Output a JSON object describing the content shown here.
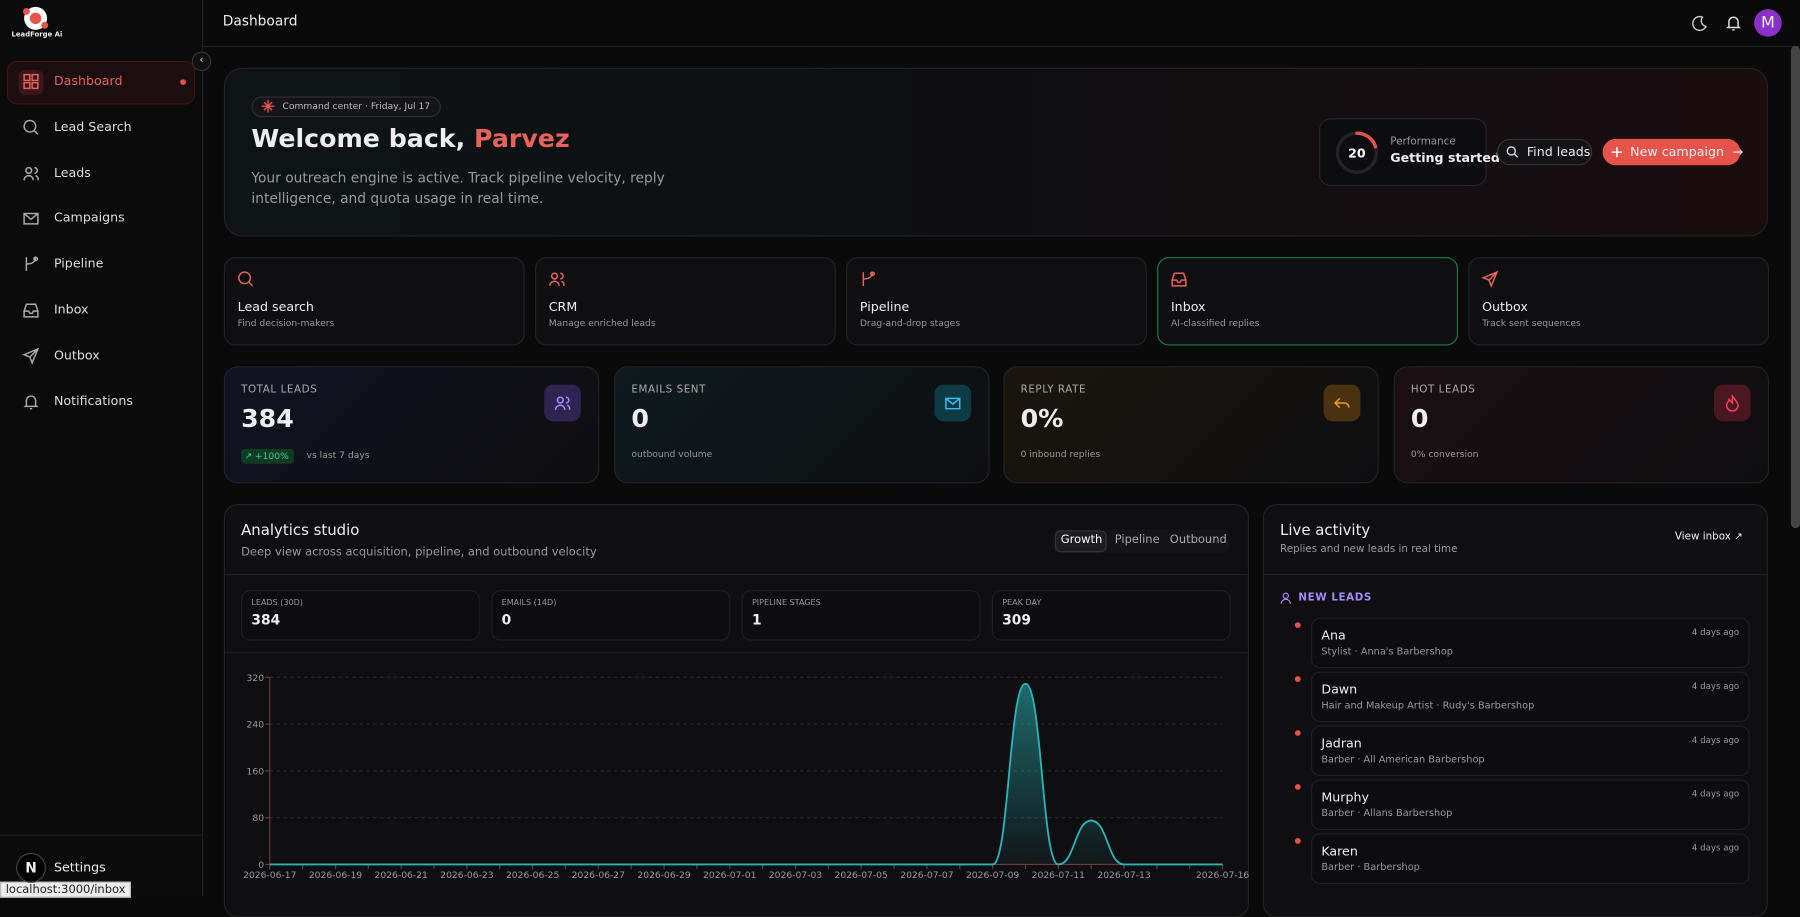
{
  "sidebar": {
    "logo": "LeadForge Ai",
    "nav": [
      "Dashboard",
      "Lead Search",
      "Leads",
      "Campaigns",
      "Pipeline",
      "Inbox",
      "Outbox",
      "Notifications"
    ],
    "footer_avatar": "N",
    "footer_label": "Settings"
  },
  "header": {
    "title": "Dashboard",
    "avatar": "M"
  },
  "hero": {
    "badge": "Command center · Friday, Jul 17",
    "greeting": "Welcome back,",
    "name": "Parvez",
    "text": "Your outreach engine is active. Track pipeline velocity, reply intelligence, and quota usage in real time.",
    "performance": {
      "score": 20,
      "label": "Performance",
      "status": "Getting started"
    },
    "buttons": [
      "Find leads",
      "New campaign"
    ]
  },
  "quick_links": [
    {
      "title": "Lead search",
      "subtitle": "Find decision-makers"
    },
    {
      "title": "CRM",
      "subtitle": "Manage enriched leads"
    },
    {
      "title": "Pipeline",
      "subtitle": "Drag-and-drop stages"
    },
    {
      "title": "Inbox",
      "subtitle": "AI-classified replies"
    },
    {
      "title": "Outbox",
      "subtitle": "Track sent sequences"
    }
  ],
  "stats": [
    {
      "label": "TOTAL LEADS",
      "value": "384",
      "badge": "+100%",
      "note": "vs last 7 days"
    },
    {
      "label": "EMAILS SENT",
      "value": "0",
      "note": "outbound volume"
    },
    {
      "label": "REPLY RATE",
      "value": "0%",
      "note": "0 inbound replies"
    },
    {
      "label": "HOT LEADS",
      "value": "0",
      "note": "0% conversion"
    }
  ],
  "analytics": {
    "title": "Analytics studio",
    "subtitle": "Deep view across acquisition, pipeline, and outbound velocity",
    "tabs": [
      "Growth",
      "Pipeline",
      "Outbound"
    ],
    "mini_stats": [
      {
        "label": "LEADS (30D)",
        "value": "384"
      },
      {
        "label": "EMAILS (14D)",
        "value": "0"
      },
      {
        "label": "PIPELINE STAGES",
        "value": "1"
      },
      {
        "label": "PEAK DAY",
        "value": "309"
      }
    ],
    "chart": {
      "type": "line",
      "categories": [
        "2026-06-17",
        null,
        "2026-06-19",
        null,
        "2026-06-21",
        null,
        "2026-06-23",
        null,
        "2026-06-25",
        null,
        "2026-06-27",
        null,
        "2026-06-29",
        null,
        "2026-07-01",
        null,
        "2026-07-03",
        null,
        "2026-07-05",
        null,
        "2026-07-07",
        null,
        "2026-07-09",
        null,
        "2026-07-11",
        null,
        "2026-07-13",
        null,
        null,
        "2026-07-16"
      ],
      "values": [
        0,
        0,
        0,
        0,
        0,
        0,
        0,
        0,
        0,
        0,
        0,
        0,
        0,
        0,
        0,
        0,
        0,
        0,
        0,
        0,
        0,
        0,
        0,
        309,
        0,
        75,
        0,
        0,
        0,
        0
      ],
      "color": "#2bb3b8",
      "ylim": [
        0,
        320
      ],
      "yticks": [
        0,
        80,
        160,
        240,
        320
      ],
      "grid": true
    }
  },
  "live": {
    "title": "Live activity",
    "subtitle": "Replies and new leads in real time",
    "link": "View inbox",
    "section": "NEW LEADS",
    "items": [
      {
        "name": "Ana",
        "detail": "Stylist · Anna's Barbershop",
        "time": "4 days ago"
      },
      {
        "name": "Dawn",
        "detail": "Hair and Makeup Artist · Rudy's Barbershop",
        "time": "4 days ago"
      },
      {
        "name": "Jadran",
        "detail": "Barber · All American Barbershop",
        "time": "4 days ago"
      },
      {
        "name": "Murphy",
        "detail": "Barber · Allans Barbershop",
        "time": "4 days ago"
      },
      {
        "name": "Karen",
        "detail": "Barber · Barbershop",
        "time": "4 days ago"
      }
    ]
  },
  "status_bar": "localhost:3000/inbox"
}
